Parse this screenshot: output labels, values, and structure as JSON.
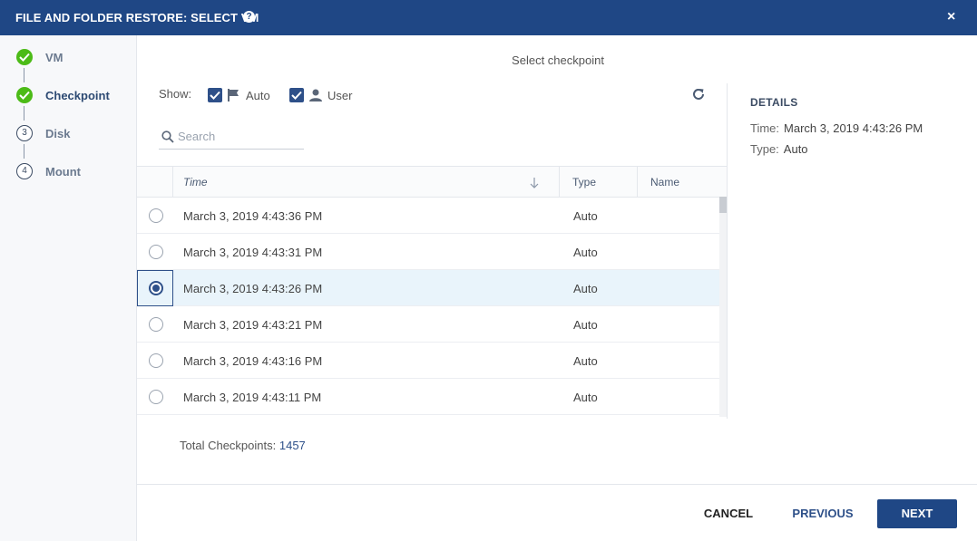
{
  "header": {
    "title": "FILE AND FOLDER RESTORE: SELECT VM",
    "help": "?",
    "close": "×"
  },
  "steps": [
    {
      "label": "VM",
      "state": "done"
    },
    {
      "label": "Checkpoint",
      "state": "done"
    },
    {
      "label": "Disk",
      "number": "3",
      "state": "pending"
    },
    {
      "label": "Mount",
      "number": "4",
      "state": "pending"
    }
  ],
  "main": {
    "title": "Select checkpoint",
    "show_label": "Show:",
    "filters": {
      "auto_label": "Auto",
      "user_label": "User",
      "auto_checked": true,
      "user_checked": true
    },
    "search_placeholder": "Search"
  },
  "table": {
    "columns": {
      "time": "Time",
      "type": "Type",
      "name": "Name"
    },
    "rows": [
      {
        "time": "March 3, 2019 4:43:36 PM",
        "type": "Auto",
        "name": "",
        "selected": false
      },
      {
        "time": "March 3, 2019 4:43:31 PM",
        "type": "Auto",
        "name": "",
        "selected": false
      },
      {
        "time": "March 3, 2019 4:43:26 PM",
        "type": "Auto",
        "name": "",
        "selected": true
      },
      {
        "time": "March 3, 2019 4:43:21 PM",
        "type": "Auto",
        "name": "",
        "selected": false
      },
      {
        "time": "March 3, 2019 4:43:16 PM",
        "type": "Auto",
        "name": "",
        "selected": false
      },
      {
        "time": "March 3, 2019 4:43:11 PM",
        "type": "Auto",
        "name": "",
        "selected": false
      }
    ],
    "total_label": "Total Checkpoints:",
    "total_count": "1457"
  },
  "details": {
    "title": "DETAILS",
    "time_label": "Time:",
    "time_value": "March 3, 2019 4:43:26 PM",
    "type_label": "Type:",
    "type_value": "Auto"
  },
  "footer": {
    "cancel": "CANCEL",
    "previous": "PREVIOUS",
    "next": "NEXT"
  },
  "colors": {
    "header": "#1f4785",
    "accent": "#2e5089",
    "success": "#4cbb17",
    "selected_row": "#e9f4fb"
  }
}
